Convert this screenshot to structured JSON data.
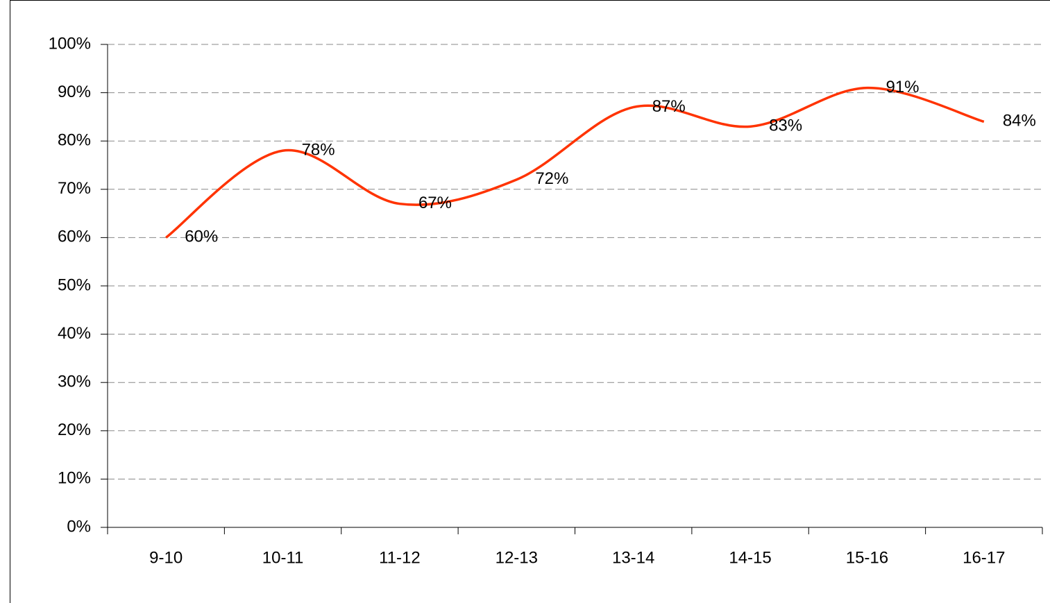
{
  "chart_data": {
    "type": "line",
    "categories": [
      "9-10",
      "10-11",
      "11-12",
      "12-13",
      "13-14",
      "14-15",
      "15-16",
      "16-17"
    ],
    "series": [
      {
        "name": null,
        "color": "#ff3300",
        "values": [
          60,
          78,
          67,
          72,
          87,
          83,
          91,
          84
        ],
        "value_labels": [
          "60%",
          "78%",
          "67%",
          "72%",
          "87%",
          "83%",
          "91%",
          "84%"
        ]
      }
    ],
    "smooth": true,
    "ylim": [
      0,
      100
    ],
    "yticks": [
      {
        "value": 0,
        "label": "0%"
      },
      {
        "value": 10,
        "label": "10%"
      },
      {
        "value": 20,
        "label": "20%"
      },
      {
        "value": 30,
        "label": "30%"
      },
      {
        "value": 40,
        "label": "40%"
      },
      {
        "value": 50,
        "label": "50%"
      },
      {
        "value": 60,
        "label": "60%"
      },
      {
        "value": 70,
        "label": "70%"
      },
      {
        "value": 80,
        "label": "80%"
      },
      {
        "value": 90,
        "label": "90%"
      },
      {
        "value": 100,
        "label": "100%"
      }
    ],
    "grid": true
  }
}
